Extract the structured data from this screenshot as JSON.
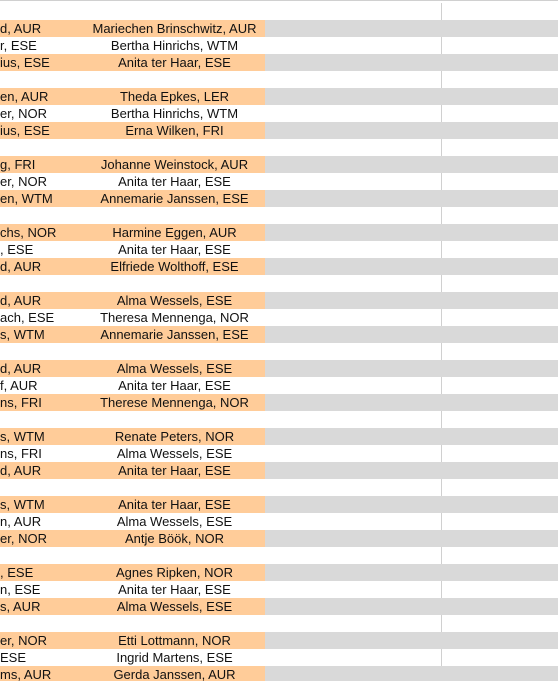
{
  "groups": [
    [
      [
        "d, AUR",
        "Mariechen Brinschwitz, AUR"
      ],
      [
        "r, ESE",
        "Bertha Hinrichs, WTM"
      ],
      [
        "ius, ESE",
        "Anita ter Haar, ESE"
      ]
    ],
    [
      [
        "en, AUR",
        "Theda Epkes, LER"
      ],
      [
        "er, NOR",
        "Bertha Hinrichs, WTM"
      ],
      [
        "ius, ESE",
        "Erna Wilken, FRI"
      ]
    ],
    [
      [
        "g, FRI",
        "Johanne Weinstock, AUR"
      ],
      [
        "er, NOR",
        "Anita ter Haar, ESE"
      ],
      [
        "en, WTM",
        "Annemarie Janssen, ESE"
      ]
    ],
    [
      [
        "chs, NOR",
        "Harmine Eggen, AUR"
      ],
      [
        ", ESE",
        "Anita ter Haar, ESE"
      ],
      [
        "d, AUR",
        "Elfriede Wolthoff, ESE"
      ]
    ],
    [
      [
        "d, AUR",
        "Alma Wessels, ESE"
      ],
      [
        "ach, ESE",
        "Theresa Mennenga, NOR"
      ],
      [
        "s, WTM",
        "Annemarie Janssen, ESE"
      ]
    ],
    [
      [
        "d, AUR",
        "Alma Wessels, ESE"
      ],
      [
        "f, AUR",
        "Anita ter Haar, ESE"
      ],
      [
        "ns, FRI",
        "Therese Mennenga, NOR"
      ]
    ],
    [
      [
        "s, WTM",
        "Renate Peters, NOR"
      ],
      [
        "ns, FRI",
        "Alma Wessels, ESE"
      ],
      [
        "d, AUR",
        "Anita ter Haar, ESE"
      ]
    ],
    [
      [
        "s, WTM",
        "Anita ter Haar, ESE"
      ],
      [
        "n, AUR",
        "Alma Wessels, ESE"
      ],
      [
        "er, NOR",
        "Antje Böök, NOR"
      ]
    ],
    [
      [
        ", ESE",
        "Agnes Ripken, NOR"
      ],
      [
        "n, ESE",
        "Anita ter Haar, ESE"
      ],
      [
        "s, AUR",
        "Alma Wessels, ESE"
      ]
    ],
    [
      [
        "er, NOR",
        "Etti Lottmann, NOR"
      ],
      [
        " ESE",
        "Ingrid Martens, ESE"
      ],
      [
        "ms, AUR",
        "Gerda Janssen, AUR"
      ]
    ]
  ]
}
